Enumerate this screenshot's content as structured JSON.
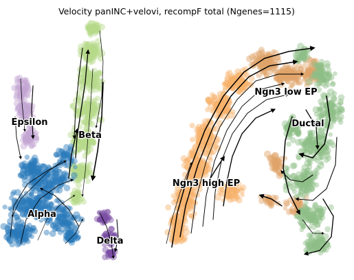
{
  "chart_data": {
    "type": "scatter",
    "title": "Velocity panINC+velovi, recompF total (Ngenes=1115)",
    "xlabel": "",
    "ylabel": "",
    "grid": false,
    "overlay": "velocity streamlines",
    "clusters": [
      {
        "name": "Alpha",
        "color": "#2b7bba"
      },
      {
        "name": "Beta",
        "color": "#b5d98a"
      },
      {
        "name": "Delta",
        "color": "#7b4ea3"
      },
      {
        "name": "Epsilon",
        "color": "#c3a6d2"
      },
      {
        "name": "Ductal",
        "color": "#8fbf87"
      },
      {
        "name": "Ngn3 low EP",
        "color": "#e0a56a"
      },
      {
        "name": "Ngn3 high EP",
        "color": "#f7b26b"
      }
    ]
  }
}
